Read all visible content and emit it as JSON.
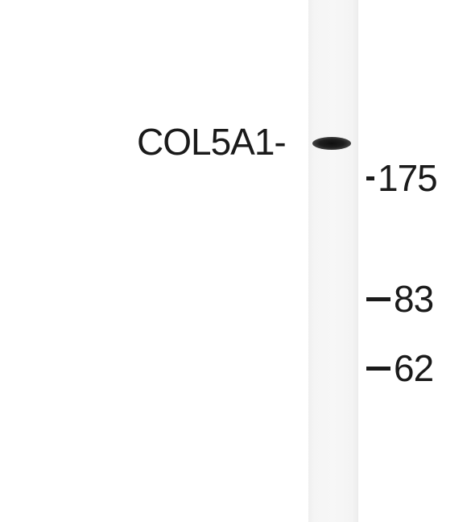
{
  "blot": {
    "band_label": "COL5A1-",
    "markers": [
      {
        "label": "175"
      },
      {
        "label": "83"
      },
      {
        "label": "62"
      }
    ]
  }
}
